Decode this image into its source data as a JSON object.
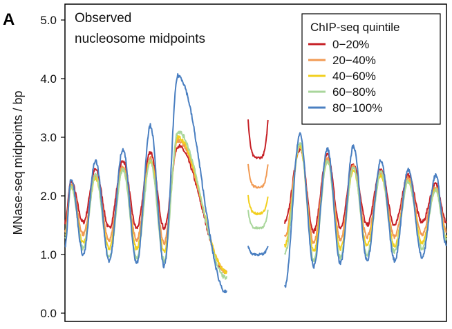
{
  "panel_label": "A",
  "annotation": [
    "Observed",
    "nucleosome midpoints"
  ],
  "chart_data": {
    "type": "line",
    "title": "",
    "ylabel": "MNase-seq midpoints / bp",
    "xlabel": "",
    "ylim": [
      0,
      5
    ],
    "yticks": [
      "0.0",
      "1.0",
      "2.0",
      "3.0",
      "4.0",
      "5.0"
    ],
    "grid": false,
    "legend": {
      "title": "ChIP-seq quintile",
      "placement": "top-right"
    },
    "peak_positions": [
      0.02,
      0.1,
      0.19,
      0.28,
      0.37,
      0.475,
      0.77,
      0.86,
      0.945,
      1.035,
      1.125,
      1.215
    ],
    "series": [
      {
        "name": "0−20%",
        "color": "#c62026",
        "peaks": [
          2.25,
          2.45,
          2.6,
          2.75,
          2.85,
          2.85,
          2.8,
          2.7,
          2.55,
          2.45,
          2.35,
          2.2
        ],
        "troughs": [
          1.55,
          1.45,
          1.45,
          1.45,
          1.35,
          1.4,
          1.45,
          1.5,
          1.5,
          1.55
        ],
        "ends": [
          1.55,
          1.55
        ],
        "inner_min": [
          0.7,
          1.55
        ],
        "gap": [
          2.65,
          3.3
        ]
      },
      {
        "name": "20−40%",
        "color": "#f19a53",
        "peaks": [
          2.2,
          2.35,
          2.5,
          2.65,
          2.95,
          2.95,
          2.85,
          2.65,
          2.5,
          2.4,
          2.3,
          2.15
        ],
        "troughs": [
          1.35,
          1.25,
          1.25,
          1.2,
          1.15,
          1.2,
          1.25,
          1.3,
          1.3,
          1.35
        ],
        "ends": [
          1.4,
          1.4
        ],
        "inner_min": [
          0.7,
          1.3
        ],
        "gap": [
          2.15,
          2.55
        ]
      },
      {
        "name": "40−60%",
        "color": "#f2cf1e",
        "peaks": [
          2.15,
          2.3,
          2.45,
          2.6,
          3.0,
          3.0,
          2.85,
          2.6,
          2.45,
          2.35,
          2.25,
          2.1
        ],
        "troughs": [
          1.2,
          1.1,
          1.1,
          1.05,
          1.0,
          1.05,
          1.1,
          1.15,
          1.15,
          1.2
        ],
        "ends": [
          1.3,
          1.3
        ],
        "inner_min": [
          0.7,
          1.15
        ],
        "gap": [
          1.7,
          2.0
        ]
      },
      {
        "name": "60−80%",
        "color": "#a9d69b",
        "peaks": [
          2.15,
          2.35,
          2.45,
          2.6,
          3.1,
          3.1,
          2.9,
          2.6,
          2.5,
          2.4,
          2.25,
          2.1
        ],
        "troughs": [
          1.1,
          0.95,
          0.95,
          0.9,
          0.85,
          0.9,
          0.95,
          1.0,
          1.05,
          1.1
        ],
        "ends": [
          1.25,
          1.25
        ],
        "inner_min": [
          0.6,
          1.0
        ],
        "gap": [
          1.45,
          1.75
        ]
      },
      {
        "name": "80−100%",
        "color": "#4a7fc1",
        "peaks": [
          2.3,
          2.6,
          2.8,
          3.2,
          4.05,
          4.05,
          3.05,
          2.8,
          2.85,
          2.6,
          2.45,
          2.35
        ],
        "troughs": [
          1.0,
          0.9,
          0.85,
          0.8,
          0.75,
          0.8,
          0.85,
          0.9,
          0.9,
          0.95
        ],
        "ends": [
          1.15,
          1.15
        ],
        "inner_min": [
          0.35,
          0.45
        ],
        "gap": [
          1.0,
          1.15
        ]
      }
    ]
  }
}
